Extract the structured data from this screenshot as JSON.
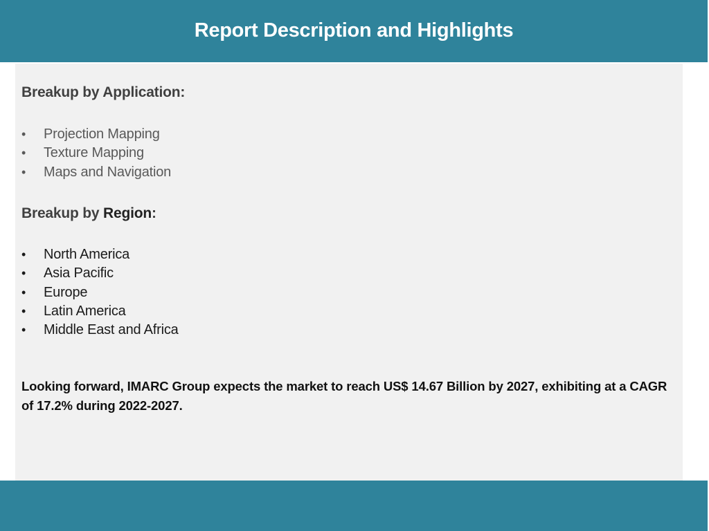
{
  "header": {
    "title": "Report Description and Highlights"
  },
  "applications": {
    "heading": "Breakup by Application:",
    "items": [
      "Projection Mapping",
      "Texture Mapping",
      "Maps and Navigation"
    ]
  },
  "regions": {
    "heading_prefix": "Breakup by ",
    "heading_emphasis": "Region",
    "heading_suffix": ":",
    "items": [
      "North America",
      "Asia Pacific",
      "Europe",
      "Latin America",
      "Middle East and Africa"
    ]
  },
  "forecast": {
    "text": "Looking forward, IMARC Group expects the market to reach US$ 14.67 Billion by 2027, exhibiting at a CAGR of 17.2% during 2022-2027."
  },
  "bullet_glyph": "•",
  "colors": {
    "brand_teal": "#2f839b",
    "panel_background": "#f1f1f1",
    "heading_gray": "#404040"
  }
}
